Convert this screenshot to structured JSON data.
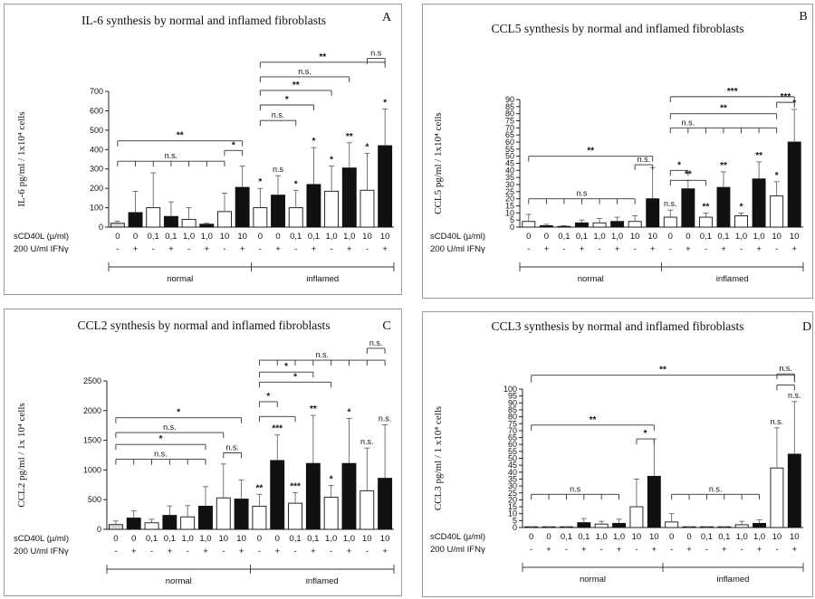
{
  "chart_data": [
    {
      "id": "a",
      "type": "bar",
      "panel_letter": "A",
      "title": "IL-6 synthesis by normal and inflamed fibroblasts",
      "ylabel": "IL-6 pg/ml / 1x10⁴ cells",
      "ylim": [
        0,
        700
      ],
      "yticks": [
        0,
        100,
        200,
        300,
        400,
        500,
        600,
        700
      ],
      "row1_label": "sCD40L (µ/ml)",
      "row2_label": "200 U/ml IFNγ",
      "categories": [
        "0",
        "0",
        "0,1",
        "0,1",
        "1,0",
        "1,0",
        "10",
        "10",
        "0",
        "0",
        "0,1",
        "0,1",
        "1,0",
        "1,0",
        "10",
        "10"
      ],
      "ifn": [
        "-",
        "+",
        "-",
        "+",
        "-",
        "+",
        "-",
        "+",
        "-",
        "+",
        "-",
        "+",
        "-",
        "+",
        "-",
        "+"
      ],
      "values": [
        20,
        75,
        100,
        55,
        40,
        15,
        80,
        205,
        100,
        165,
        100,
        220,
        185,
        305,
        190,
        420
      ],
      "errors": [
        10,
        110,
        180,
        75,
        60,
        5,
        95,
        110,
        100,
        100,
        90,
        190,
        130,
        130,
        190,
        190
      ],
      "fills": [
        "light",
        "dark",
        "white",
        "dark",
        "white",
        "dark",
        "white",
        "dark",
        "white",
        "dark",
        "white",
        "dark",
        "white",
        "dark",
        "white",
        "dark"
      ],
      "bar_labels": [
        "",
        "",
        "",
        "",
        "",
        "",
        "",
        "",
        "*",
        "n.s",
        "*",
        "*",
        "*",
        "**",
        "*",
        "*"
      ],
      "groups": [
        "normal",
        "inflamed"
      ],
      "brackets": [
        {
          "from": 0,
          "to": 7,
          "level": 445,
          "label": "**",
          "type": "plain"
        },
        {
          "from": 0,
          "to": 6,
          "level": 340,
          "label": "n.s.",
          "type": "comb",
          "teeth": [
            0,
            1,
            2,
            3,
            4,
            5,
            6
          ]
        },
        {
          "from": 6,
          "to": 7,
          "level": 395,
          "label": "*",
          "type": "plain"
        },
        {
          "from": 8,
          "to": 15,
          "level": 850,
          "label": "**",
          "type": "plain"
        },
        {
          "from": 8,
          "to": 13,
          "level": 775,
          "label": "n.s.",
          "type": "plain"
        },
        {
          "from": 8,
          "to": 12,
          "level": 705,
          "label": "**",
          "type": "plain"
        },
        {
          "from": 8,
          "to": 11,
          "level": 630,
          "label": "*",
          "type": "plain"
        },
        {
          "from": 8,
          "to": 10,
          "level": 550,
          "label": "n.s.",
          "type": "plain"
        },
        {
          "from": 14,
          "to": 15,
          "level": 870,
          "label": "n.s",
          "type": "plain"
        }
      ]
    },
    {
      "id": "b",
      "type": "bar",
      "panel_letter": "B",
      "title": "CCL5 synthesis  by normal and inflamed fibroblasts",
      "ylabel": "CCL5 pg/ml / 1x10⁴ cells",
      "ylim": [
        0,
        90
      ],
      "yticks": [
        0,
        5,
        10,
        15,
        20,
        25,
        30,
        35,
        40,
        45,
        50,
        55,
        60,
        65,
        70,
        75,
        80,
        85,
        90
      ],
      "row1_label": "sCD40L (µ/ml)",
      "row2_label": "200 U/ml IFNγ",
      "categories": [
        "0",
        "0",
        "0,1",
        "0,1",
        "1,0",
        "1,0",
        "10",
        "10",
        "0",
        "0",
        "0,1",
        "0,1",
        "1,0",
        "1,0",
        "10",
        "10"
      ],
      "ifn": [
        "-",
        "+",
        "-",
        "+",
        "-",
        "+",
        "-",
        "+",
        "-",
        "+",
        "-",
        "+",
        "-",
        "+",
        "-",
        "+"
      ],
      "values": [
        4,
        1,
        0.5,
        3,
        3,
        4,
        4,
        20,
        7,
        27,
        7,
        28,
        8,
        34,
        22,
        60
      ],
      "errors": [
        5,
        1,
        0.5,
        2,
        3,
        3,
        4,
        22,
        5,
        6,
        3,
        11,
        2,
        12,
        10,
        23
      ],
      "fills": [
        "white",
        "dark",
        "white",
        "dark",
        "white",
        "dark",
        "white",
        "dark",
        "white",
        "dark",
        "white",
        "dark",
        "white",
        "dark",
        "white",
        "dark"
      ],
      "bar_labels": [
        "",
        "",
        "",
        "",
        "",
        "",
        "",
        "",
        "n.s.",
        "**",
        "**",
        "**",
        "*",
        "**",
        "*",
        "*"
      ],
      "groups": [
        "normal",
        "inflamed"
      ],
      "brackets": [
        {
          "from": 0,
          "to": 7,
          "level": 50,
          "label": "**",
          "type": "plain"
        },
        {
          "from": 0,
          "to": 6,
          "level": 20,
          "label": "n.s",
          "type": "comb",
          "teeth": [
            0,
            1,
            2,
            3,
            4,
            5,
            6
          ]
        },
        {
          "from": 6,
          "to": 7,
          "level": 44,
          "label": "n.s.",
          "type": "plain"
        },
        {
          "from": 8,
          "to": 15,
          "level": 92,
          "label": "***",
          "type": "plain"
        },
        {
          "from": 8,
          "to": 14,
          "level": 80,
          "label": "**",
          "type": "plain"
        },
        {
          "from": 8,
          "to": 10,
          "level": 70,
          "label": "n.s.",
          "type": "comb",
          "teeth": [
            8,
            9,
            10,
            11,
            12,
            13,
            14
          ]
        },
        {
          "from": 8,
          "to": 9,
          "level": 40,
          "label": "*",
          "type": "plain"
        },
        {
          "from": 8,
          "to": 10,
          "level": 33,
          "label": "",
          "type": "plain"
        },
        {
          "from": 14,
          "to": 15,
          "level": 88,
          "label": "***",
          "type": "plain"
        }
      ]
    },
    {
      "id": "c",
      "type": "bar",
      "panel_letter": "C",
      "title": "CCL2 synthesis by normal and inflamed fibroblasts",
      "ylabel": "CCL2 pg/ml / 1x 10⁴ cells",
      "ylim": [
        0,
        2500
      ],
      "yticks": [
        0,
        500,
        1000,
        1500,
        2000,
        2500
      ],
      "row1_label": "sCD40L (µ/ml)",
      "row2_label": "200 U/ml IFNγ",
      "categories": [
        "0",
        "0",
        "0,1",
        "0,1",
        "1,0",
        "1,0",
        "10",
        "10",
        "0",
        "0",
        "0,1",
        "0,1",
        "1,0",
        "1,0",
        "10",
        "10"
      ],
      "ifn": [
        "-",
        "+",
        "-",
        "+",
        "-",
        "+",
        "-",
        "+",
        "-",
        "+",
        "-",
        "+",
        "-",
        "+",
        "-",
        "+"
      ],
      "values": [
        80,
        190,
        110,
        235,
        210,
        390,
        530,
        510,
        390,
        1160,
        440,
        1110,
        540,
        1110,
        650,
        860
      ],
      "errors": [
        60,
        120,
        60,
        160,
        190,
        330,
        570,
        320,
        200,
        430,
        180,
        810,
        200,
        760,
        720,
        900
      ],
      "fills": [
        "light",
        "dark",
        "white",
        "dark",
        "white",
        "dark",
        "white",
        "dark",
        "white",
        "dark",
        "white",
        "dark",
        "white",
        "dark",
        "white",
        "dark"
      ],
      "bar_labels": [
        "",
        "",
        "",
        "",
        "",
        "",
        "",
        "",
        "**",
        "***",
        "***",
        "**",
        "*",
        "*",
        "n.s.",
        "n.s."
      ],
      "groups": [
        "normal",
        "inflamed"
      ],
      "brackets": [
        {
          "from": 0,
          "to": 7,
          "level": 1880,
          "label": "*",
          "type": "plain"
        },
        {
          "from": 0,
          "to": 6,
          "level": 1630,
          "label": "n.s.",
          "type": "plain"
        },
        {
          "from": 0,
          "to": 5,
          "level": 1430,
          "label": "*",
          "type": "plain"
        },
        {
          "from": 0,
          "to": 5,
          "level": 1180,
          "label": "n.s.",
          "type": "comb",
          "teeth": [
            0,
            1,
            2,
            3,
            4,
            5
          ]
        },
        {
          "from": 6,
          "to": 7,
          "level": 1290,
          "label": "n.s.",
          "type": "plain"
        },
        {
          "from": 8,
          "to": 15,
          "level": 2850,
          "label": "n.s.",
          "type": "comb",
          "teeth": [
            8,
            9,
            10,
            11,
            12,
            13,
            14,
            15
          ]
        },
        {
          "from": 8,
          "to": 11,
          "level": 2650,
          "label": "*",
          "type": "plain"
        },
        {
          "from": 8,
          "to": 12,
          "level": 2480,
          "label": "*",
          "type": "plain"
        },
        {
          "from": 8,
          "to": 9,
          "level": 2150,
          "label": "*",
          "type": "plain"
        },
        {
          "from": 8,
          "to": 10,
          "level": 1900,
          "label": "",
          "type": "plain"
        },
        {
          "from": 14,
          "to": 15,
          "level": 3050,
          "label": "n.s.",
          "type": "plain"
        }
      ]
    },
    {
      "id": "d",
      "type": "bar",
      "panel_letter": "D",
      "title": "CCL3 synthesis by normal and inflamed fibroblasts",
      "ylabel": "CCL3 pg/ml / 1 x10⁴ cells",
      "ylim": [
        0,
        100
      ],
      "yticks": [
        0,
        5,
        10,
        15,
        20,
        25,
        30,
        35,
        40,
        45,
        50,
        55,
        60,
        65,
        70,
        75,
        80,
        85,
        90,
        95,
        100
      ],
      "row1_label": "sCD40L (µ/ml)",
      "row2_label": "200 U/ml IFNγ",
      "categories": [
        "0",
        "0",
        "0,1",
        "0,1",
        "1,0",
        "1,0",
        "10",
        "10",
        "0",
        "0",
        "0,1",
        "0,1",
        "1,0",
        "1,0",
        "10",
        "10"
      ],
      "ifn": [
        "-",
        "+",
        "-",
        "+",
        "-",
        "+",
        "-",
        "+",
        "-",
        "+",
        "-",
        "+",
        "-",
        "+",
        "-",
        "+"
      ],
      "values": [
        0.3,
        0.3,
        0.3,
        3.5,
        2.5,
        3,
        15,
        37,
        4,
        0.3,
        0.3,
        0.3,
        2,
        3,
        43,
        53
      ],
      "errors": [
        0.2,
        0.2,
        0.2,
        3,
        2,
        3,
        20,
        27,
        6,
        0.2,
        0.2,
        0.2,
        2.5,
        2.5,
        29,
        38
      ],
      "fills": [
        "white",
        "dark",
        "white",
        "dark",
        "white",
        "dark",
        "white",
        "dark",
        "white",
        "dark",
        "white",
        "dark",
        "white",
        "dark",
        "white",
        "dark"
      ],
      "bar_labels": [
        "",
        "",
        "",
        "",
        "",
        "",
        "",
        "",
        "",
        "",
        "",
        "",
        "",
        "",
        "n.s.",
        "n.s."
      ],
      "groups": [
        "normal",
        "inflamed"
      ],
      "brackets": [
        {
          "from": 0,
          "to": 7,
          "level": 74,
          "label": "**",
          "type": "plain"
        },
        {
          "from": 0,
          "to": 5,
          "level": 24,
          "label": "n.s",
          "type": "comb",
          "teeth": [
            0,
            1,
            2,
            3,
            4,
            5
          ]
        },
        {
          "from": 6,
          "to": 7,
          "level": 64,
          "label": "*",
          "type": "plain"
        },
        {
          "from": 8,
          "to": 13,
          "level": 24,
          "label": "n.s.",
          "type": "comb",
          "teeth": [
            8,
            9,
            10,
            11,
            12,
            13
          ]
        },
        {
          "from": 0,
          "to": 15,
          "level": 110,
          "label": "**",
          "type": "span"
        },
        {
          "from": 14,
          "to": 15,
          "level": 111,
          "label": "n.s.",
          "type": "plain"
        },
        {
          "from": 14,
          "to": 15,
          "level": 103,
          "label": "",
          "type": "plain"
        }
      ]
    }
  ]
}
